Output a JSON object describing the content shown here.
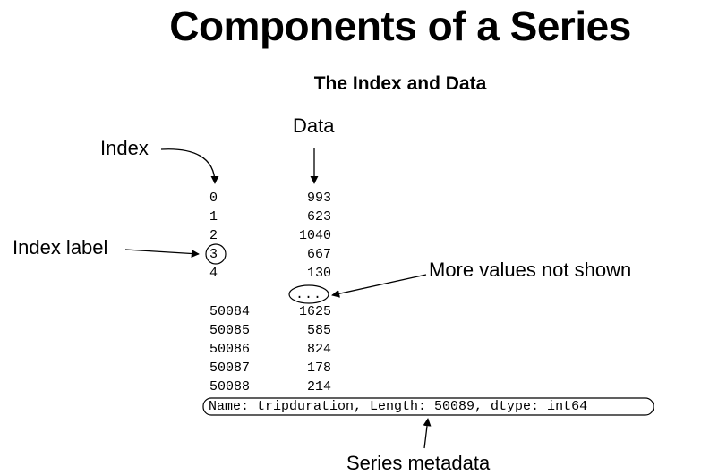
{
  "header": {
    "title": "Components of a Series",
    "subtitle": "The Index and Data"
  },
  "annotations": {
    "data": "Data",
    "index": "Index",
    "index_label": "Index label",
    "more_values": "More values not shown",
    "series_metadata": "Series metadata"
  },
  "series": {
    "top_rows": [
      {
        "index": "0",
        "value": "993"
      },
      {
        "index": "1",
        "value": "623"
      },
      {
        "index": "2",
        "value": "1040"
      },
      {
        "index": "3",
        "value": "667"
      },
      {
        "index": "4",
        "value": "130"
      }
    ],
    "ellipsis": "...",
    "bottom_rows": [
      {
        "index": "50084",
        "value": "1625"
      },
      {
        "index": "50085",
        "value": "585"
      },
      {
        "index": "50086",
        "value": "824"
      },
      {
        "index": "50087",
        "value": "178"
      },
      {
        "index": "50088",
        "value": "214"
      }
    ],
    "metadata": "Name: tripduration, Length: 50089, dtype: int64"
  }
}
